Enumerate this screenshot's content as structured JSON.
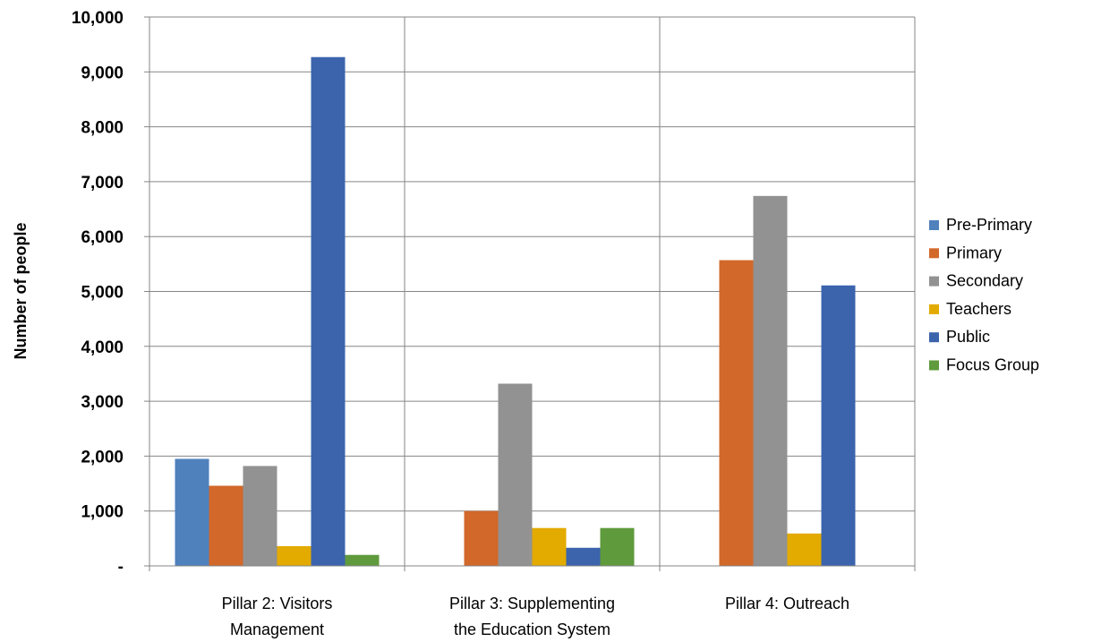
{
  "chart_data": {
    "type": "bar",
    "title": "",
    "xlabel": "",
    "ylabel": "Number of people",
    "ylim": [
      0,
      10000
    ],
    "yticks": [
      0,
      1000,
      2000,
      3000,
      4000,
      5000,
      6000,
      7000,
      8000,
      9000,
      10000
    ],
    "ytick_labels": [
      "-",
      "1,000",
      "2,000",
      "3,000",
      "4,000",
      "5,000",
      "6,000",
      "7,000",
      "8,000",
      "9,000",
      "10,000"
    ],
    "categories": [
      [
        "Pillar 2: Visitors",
        "Management"
      ],
      [
        "Pillar 3:  Supplementing",
        "the Education System"
      ],
      [
        "Pillar 4:  Outreach"
      ]
    ],
    "series": [
      {
        "name": "Pre-Primary",
        "color": "#4f81bd",
        "values": [
          1950,
          0,
          0
        ]
      },
      {
        "name": "Primary",
        "color": "#d2682a",
        "values": [
          1460,
          1000,
          5570
        ]
      },
      {
        "name": "Secondary",
        "color": "#929292",
        "values": [
          1820,
          3320,
          6740
        ]
      },
      {
        "name": "Teachers",
        "color": "#e3aa00",
        "values": [
          360,
          690,
          590
        ]
      },
      {
        "name": "Public",
        "color": "#3b64ad",
        "values": [
          9270,
          330,
          5110
        ]
      },
      {
        "name": "Focus Group",
        "color": "#5f9a3c",
        "values": [
          200,
          690,
          0
        ]
      }
    ],
    "grid": "horizontal and category separators",
    "legend_position": "right"
  }
}
